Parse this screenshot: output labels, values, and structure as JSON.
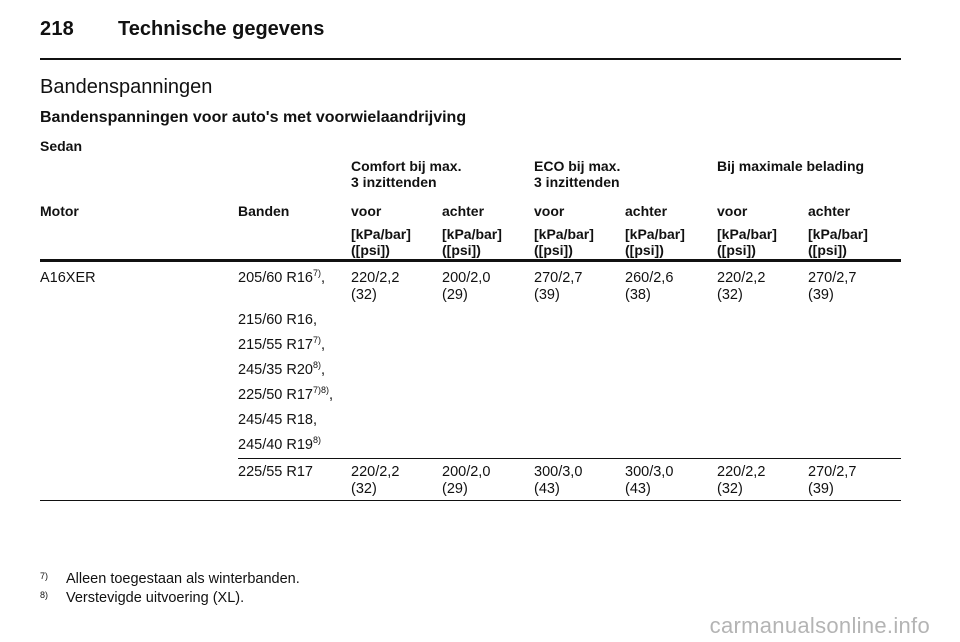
{
  "page_header": {
    "page_number": "218",
    "title": "Technische gegevens"
  },
  "section_title": "Bandenspanningen",
  "subsection_title": "Bandenspanningen voor auto's met voorwielaandrijving",
  "body_type": "Sedan",
  "table": {
    "group_headers": [
      "Comfort bij max.\n3 inzittenden",
      "ECO bij max.\n3 inzittenden",
      "Bij maximale belading"
    ],
    "col_motor": "Motor",
    "col_banden": "Banden",
    "col_front": "voor",
    "col_rear": "achter",
    "unit": "[kPa/bar]\n([psi])",
    "row1": {
      "motor": "A16XER",
      "tyres": [
        {
          "text": "205/60 R16",
          "sup": "7)",
          "suffix": ","
        },
        {
          "text": "215/60 R16,",
          "sup": "",
          "suffix": ""
        },
        {
          "text": "215/55 R17",
          "sup": "7)",
          "suffix": ","
        },
        {
          "text": "245/35 R20",
          "sup": "8)",
          "suffix": ","
        },
        {
          "text": "225/50 R17",
          "sup": "7)8)",
          "suffix": ","
        },
        {
          "text": "245/45 R18,",
          "sup": "",
          "suffix": ""
        },
        {
          "text": "245/40 R19",
          "sup": "8)",
          "suffix": ""
        }
      ],
      "values": [
        "220/2,2\n(32)",
        "200/2,0\n(29)",
        "270/2,7\n(39)",
        "260/2,6\n(38)",
        "220/2,2\n(32)",
        "270/2,7\n(39)"
      ]
    },
    "row2": {
      "tyre": "225/55 R17",
      "values": [
        "220/2,2\n(32)",
        "200/2,0\n(29)",
        "300/3,0\n(43)",
        "300/3,0\n(43)",
        "220/2,2\n(32)",
        "270/2,7\n(39)"
      ]
    }
  },
  "footnotes": [
    {
      "mark": "7)",
      "text": "Alleen toegestaan als winterbanden."
    },
    {
      "mark": "8)",
      "text": "Verstevigde uitvoering (XL)."
    }
  ],
  "watermark": "carmanualsonline.info"
}
